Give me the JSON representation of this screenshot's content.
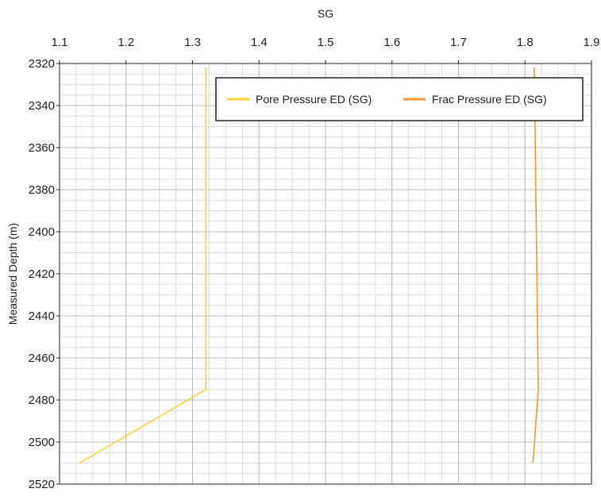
{
  "chart_data": {
    "type": "line",
    "title": "",
    "xlabel": "SG",
    "ylabel": "Measured Depth (m)",
    "xaxis_position": "top",
    "yaxis_inverted": true,
    "xlim": [
      1.1,
      1.9
    ],
    "ylim": [
      2320,
      2520
    ],
    "x_ticks": [
      1.1,
      1.2,
      1.3,
      1.4,
      1.5,
      1.6,
      1.7,
      1.8,
      1.9
    ],
    "x_tick_labels": [
      "1.1",
      "1.2",
      "1.3",
      "1.4",
      "1.5",
      "1.6",
      "1.7",
      "1.8",
      "1.9"
    ],
    "y_ticks": [
      2320,
      2340,
      2360,
      2380,
      2400,
      2420,
      2440,
      2460,
      2480,
      2500,
      2520
    ],
    "y_tick_labels": [
      "2320",
      "2340",
      "2360",
      "2380",
      "2400",
      "2420",
      "2440",
      "2460",
      "2480",
      "2500",
      "2520"
    ],
    "grid": true,
    "legend_position": "top-right",
    "series": [
      {
        "name": "Pore Pressure ED (SG)",
        "color": "#f5d33c",
        "points": [
          {
            "x": 1.32,
            "y": 2322
          },
          {
            "x": 1.32,
            "y": 2475
          },
          {
            "x": 1.13,
            "y": 2510
          }
        ]
      },
      {
        "name": "Frac Pressure ED (SG)",
        "color": "#f29a2e",
        "points": [
          {
            "x": 1.814,
            "y": 2322
          },
          {
            "x": 1.82,
            "y": 2475
          },
          {
            "x": 1.812,
            "y": 2510
          }
        ]
      }
    ]
  }
}
